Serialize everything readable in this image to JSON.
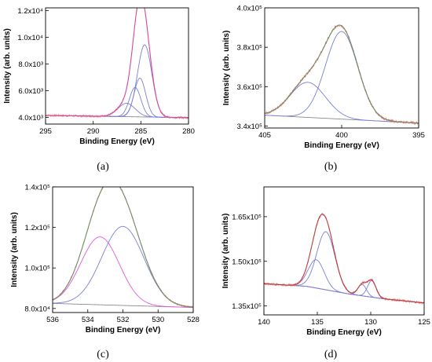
{
  "figure": {
    "panel_labels": [
      "(a)",
      "(b)",
      "(c)",
      "(d)"
    ]
  },
  "chart_data": [
    {
      "type": "line",
      "panel": "(a)",
      "xlabel": "Binding Energy (eV)",
      "ylabel": "Intensity (arb. units)",
      "xlim": [
        295,
        280
      ],
      "ylim": [
        3500,
        12200
      ],
      "x_reversed": true,
      "x_ticks": [
        295,
        290,
        285,
        280
      ],
      "x_tick_labels": [
        "295",
        "290",
        "285",
        "280"
      ],
      "y_ticks": [
        4000,
        6000,
        8000,
        10000,
        12000
      ],
      "y_tick_labels": [
        "4.0x10³",
        "6.0x10³",
        "8.0x10³",
        "1.0x10⁴",
        "1.2x10⁴"
      ],
      "grid": false,
      "colors": {
        "data": "#f08080",
        "envelope": "#d13fa0",
        "component": "#7b7fd9",
        "background": "#7f7f7f"
      },
      "baseline": [
        [
          295,
          4150
        ],
        [
          280,
          3980
        ]
      ],
      "components": [
        {
          "center": 284.6,
          "height": 5400,
          "width": 0.75
        },
        {
          "center": 285.1,
          "height": 2900,
          "width": 0.6
        },
        {
          "center": 285.6,
          "height": 2200,
          "width": 0.6
        },
        {
          "center": 286.5,
          "height": 1000,
          "width": 0.9
        }
      ],
      "noise": 80
    },
    {
      "type": "line",
      "panel": "(b)",
      "xlabel": "Binding Energy (eV)",
      "ylabel": "Intensity (arb. units)",
      "xlim": [
        405,
        395
      ],
      "ylim": [
        339000,
        400000
      ],
      "x_reversed": true,
      "x_ticks": [
        405,
        400,
        395
      ],
      "x_tick_labels": [
        "405",
        "400",
        "395"
      ],
      "y_ticks": [
        340000,
        360000,
        380000,
        400000
      ],
      "y_tick_labels": [
        "3.4x10⁵",
        "3.6x10⁵",
        "3.8x10⁵",
        "4.0x10⁵"
      ],
      "grid": false,
      "colors": {
        "data": "#f08080",
        "envelope": "#5a8a5a",
        "component": "#7b7fd9",
        "background": "#7f7f7f"
      },
      "baseline": [
        [
          405,
          345500
        ],
        [
          395,
          341500
        ]
      ],
      "components": [
        {
          "center": 400.0,
          "height": 44500,
          "width": 1.05
        },
        {
          "center": 402.2,
          "height": 17800,
          "width": 1.15
        }
      ],
      "noise": 700
    },
    {
      "type": "line",
      "panel": "(c)",
      "xlabel": "Binding Energy (eV)",
      "ylabel": "Intensity (arb. units)",
      "xlim": [
        536,
        528
      ],
      "ylim": [
        78000,
        140000
      ],
      "x_reversed": true,
      "x_ticks": [
        536,
        534,
        532,
        530,
        528
      ],
      "x_tick_labels": [
        "536",
        "534",
        "532",
        "530",
        "528"
      ],
      "y_ticks": [
        80000,
        100000,
        120000,
        140000
      ],
      "y_tick_labels": [
        "8.0x10⁴",
        "1.0x10⁵",
        "1.2x10⁵",
        "1.4x10⁵"
      ],
      "grid": false,
      "colors": {
        "data": "#f08080",
        "envelope": "#5a8a5a",
        "component": "#7b7fd9",
        "component2": "#e05ae0",
        "background": "#7f7f7f"
      },
      "baseline": [
        [
          536,
          82500
        ],
        [
          528,
          80500
        ]
      ],
      "components": [
        {
          "center": 532.0,
          "height": 39000,
          "width": 1.2
        },
        {
          "center": 533.3,
          "height": 33500,
          "width": 1.1
        }
      ],
      "noise": 400
    },
    {
      "type": "line",
      "panel": "(d)",
      "xlabel": "Binding Energy (eV)",
      "ylabel": "Intensity (arb. units)",
      "xlim": [
        140,
        125
      ],
      "ylim": [
        132000,
        175000
      ],
      "x_reversed": true,
      "x_ticks": [
        140,
        135,
        130,
        125
      ],
      "x_tick_labels": [
        "140",
        "135",
        "130",
        "125"
      ],
      "y_ticks": [
        135000,
        150000,
        165000
      ],
      "y_tick_labels": [
        "1.35x10⁵",
        "1.50x10⁵",
        "1.65x10⁵"
      ],
      "grid": false,
      "colors": {
        "data": "#f08080",
        "envelope": "#b03030",
        "component": "#7b7fd9",
        "background": "#7f7f7f"
      },
      "baseline": [
        [
          140,
          142500
        ],
        [
          136,
          141600
        ],
        [
          132,
          139000
        ],
        [
          129,
          137500
        ],
        [
          125,
          136000
        ]
      ],
      "components": [
        {
          "center": 134.2,
          "height": 19500,
          "width": 0.85
        },
        {
          "center": 135.1,
          "height": 9500,
          "width": 0.75
        },
        {
          "center": 129.9,
          "height": 5500,
          "width": 0.4
        },
        {
          "center": 130.8,
          "height": 3800,
          "width": 0.4
        }
      ],
      "noise": 400
    }
  ]
}
